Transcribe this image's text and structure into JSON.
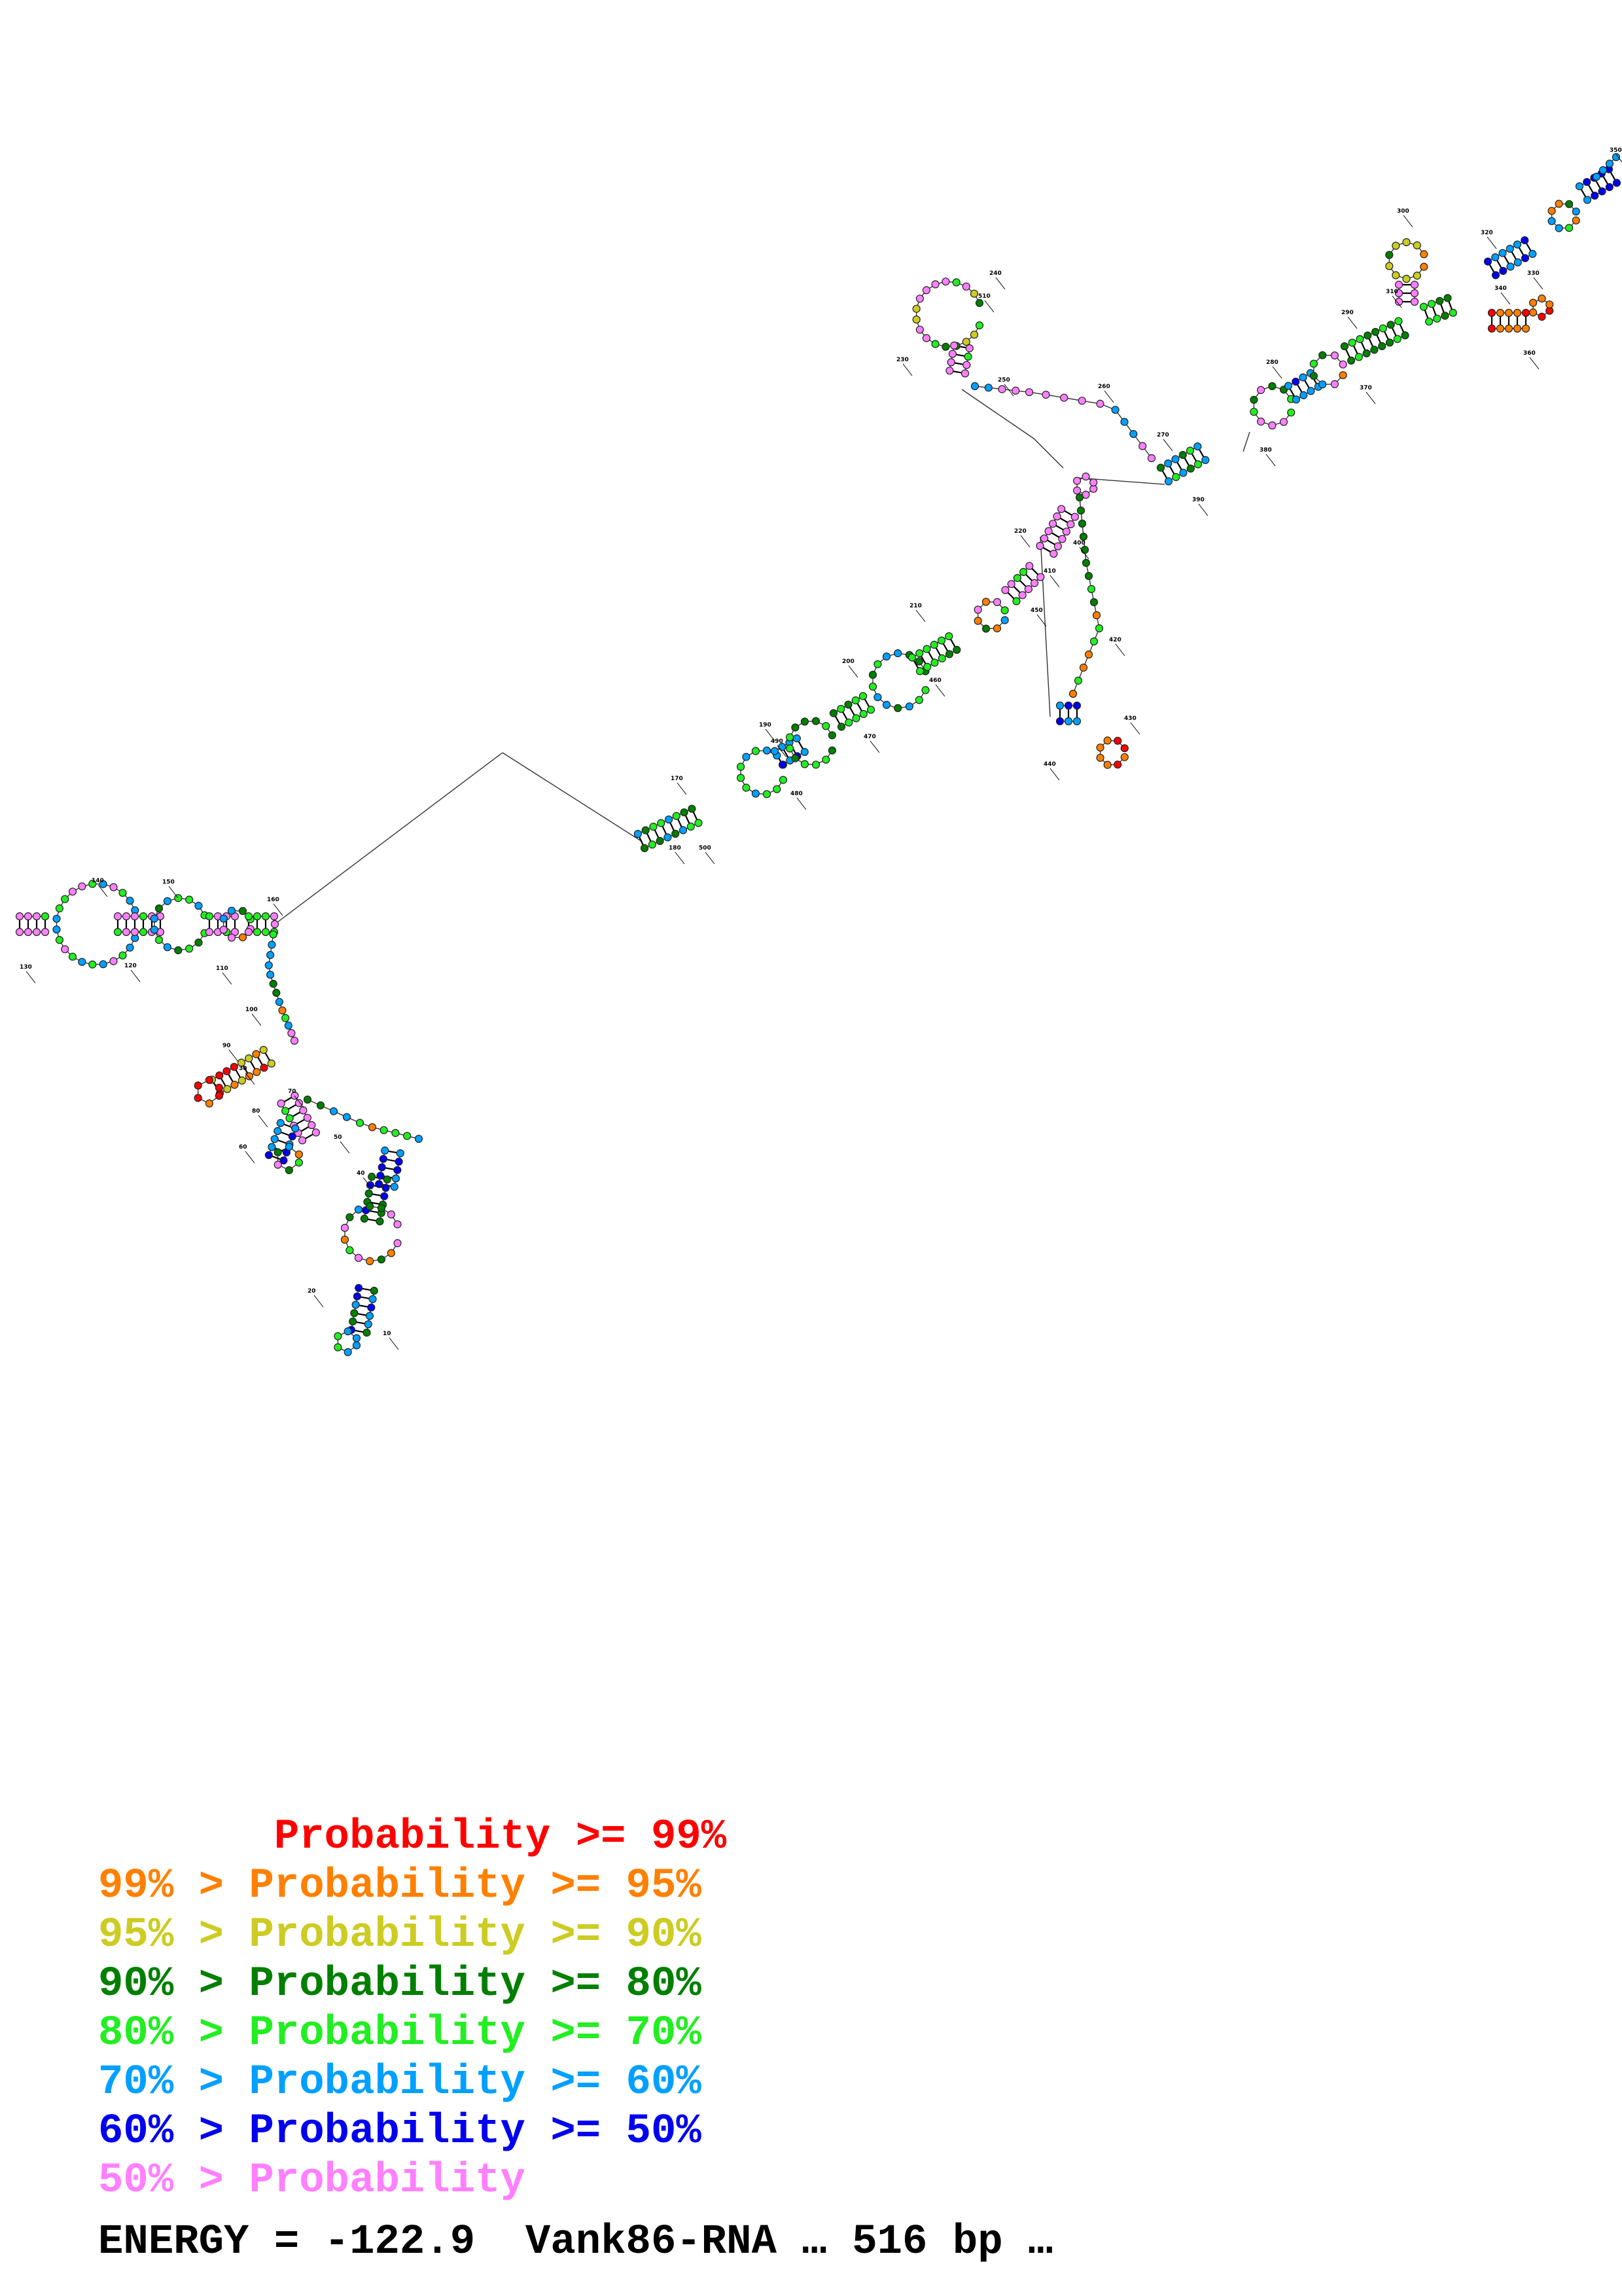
{
  "colors": {
    "p99": "#ff0000",
    "p95": "#ff8000",
    "p90": "#cccc22",
    "p80": "#007f00",
    "p70": "#22ee22",
    "p60": "#00a0ff",
    "p50": "#0000ee",
    "plt50": "#ff80ff"
  },
  "legend": [
    {
      "prefix": "       ",
      "label": "Probability >= 99%",
      "color_key": "p99"
    },
    {
      "prefix": "99% > ",
      "label": "Probability >= 95%",
      "color_key": "p95"
    },
    {
      "prefix": "95% > ",
      "label": "Probability >= 90%",
      "color_key": "p90"
    },
    {
      "prefix": "90% > ",
      "label": "Probability >= 80%",
      "color_key": "p80"
    },
    {
      "prefix": "80% > ",
      "label": "Probability >= 70%",
      "color_key": "p70"
    },
    {
      "prefix": "70% > ",
      "label": "Probability >= 60%",
      "color_key": "p60"
    },
    {
      "prefix": "60% > ",
      "label": "Probability >= 50%",
      "color_key": "p50"
    },
    {
      "prefix": "50% > ",
      "label": "Probability",
      "color_key": "plt50"
    }
  ],
  "energy_line": "ENERGY = -122.9  Vank86-RNA … 516 bp …",
  "position_labels": [
    "10",
    "20",
    "30",
    "40",
    "50",
    "60",
    "70",
    "80",
    "90",
    "100",
    "110",
    "120",
    "130",
    "140",
    "150",
    "160",
    "170",
    "180",
    "190",
    "200",
    "210",
    "220",
    "230",
    "240",
    "250",
    "260",
    "270",
    "280",
    "290",
    "300",
    "310",
    "320",
    "330",
    "340",
    "350",
    "360",
    "370",
    "380",
    "390",
    "400",
    "410",
    "420",
    "430",
    "440",
    "450",
    "460",
    "470",
    "480",
    "490",
    "500",
    "510"
  ]
}
